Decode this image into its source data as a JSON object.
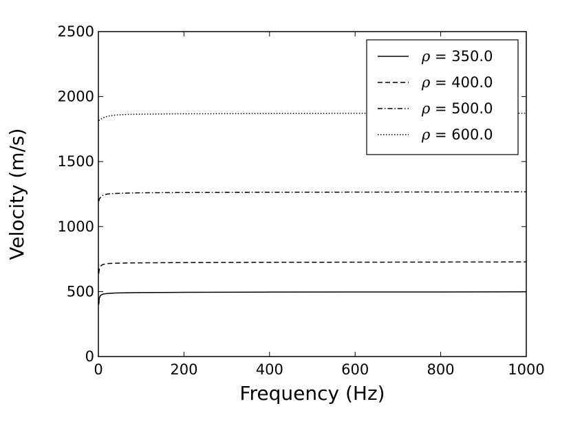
{
  "chart_data": {
    "type": "line",
    "title": "",
    "xlabel": "Frequency (Hz)",
    "ylabel": "Velocity (m/s)",
    "xlim": [
      0,
      1000
    ],
    "ylim": [
      0,
      2500
    ],
    "xticks": [
      0,
      200,
      400,
      600,
      800,
      1000
    ],
    "yticks": [
      0,
      500,
      1000,
      1500,
      2000,
      2500
    ],
    "xtick_labels": [
      "0",
      "200",
      "400",
      "600",
      "800",
      "1000"
    ],
    "ytick_labels": [
      "0",
      "500",
      "1000",
      "1500",
      "2000",
      "2500"
    ],
    "grid": false,
    "legend_position": "top-right",
    "series": [
      {
        "name": "ρ = 350.0",
        "legend_symbol": "ρ",
        "legend_value": " = 350.0",
        "line_style": "solid",
        "color": "#000000",
        "x": [
          1,
          2,
          5,
          10,
          20,
          40,
          70,
          100,
          200,
          400,
          600,
          800,
          1000
        ],
        "y": [
          400,
          450,
          470,
          480,
          485,
          489,
          491,
          492,
          494,
          496,
          497,
          497,
          498
        ]
      },
      {
        "name": "ρ = 400.0",
        "legend_symbol": "ρ",
        "legend_value": " = 400.0",
        "line_style": "dashed",
        "color": "#000000",
        "x": [
          1,
          2,
          5,
          10,
          20,
          40,
          70,
          100,
          200,
          400,
          600,
          800,
          1000
        ],
        "y": [
          640,
          670,
          695,
          708,
          715,
          718,
          720,
          721,
          723,
          725,
          726,
          727,
          728
        ]
      },
      {
        "name": "ρ = 500.0",
        "legend_symbol": "ρ",
        "legend_value": " = 500.0",
        "line_style": "dashdot",
        "color": "#000000",
        "x": [
          1,
          2,
          5,
          10,
          20,
          40,
          70,
          100,
          200,
          400,
          600,
          800,
          1000
        ],
        "y": [
          1195,
          1210,
          1225,
          1240,
          1250,
          1255,
          1258,
          1260,
          1262,
          1264,
          1265,
          1266,
          1267
        ]
      },
      {
        "name": "ρ = 600.0",
        "legend_symbol": "ρ",
        "legend_value": " = 600.0",
        "line_style": "dotted",
        "color": "#000000",
        "x": [
          1,
          5,
          10,
          20,
          40,
          70,
          100,
          200,
          400,
          600,
          800,
          1000
        ],
        "y": [
          1815,
          1825,
          1835,
          1848,
          1858,
          1863,
          1865,
          1868,
          1870,
          1871,
          1872,
          1872
        ]
      }
    ]
  }
}
